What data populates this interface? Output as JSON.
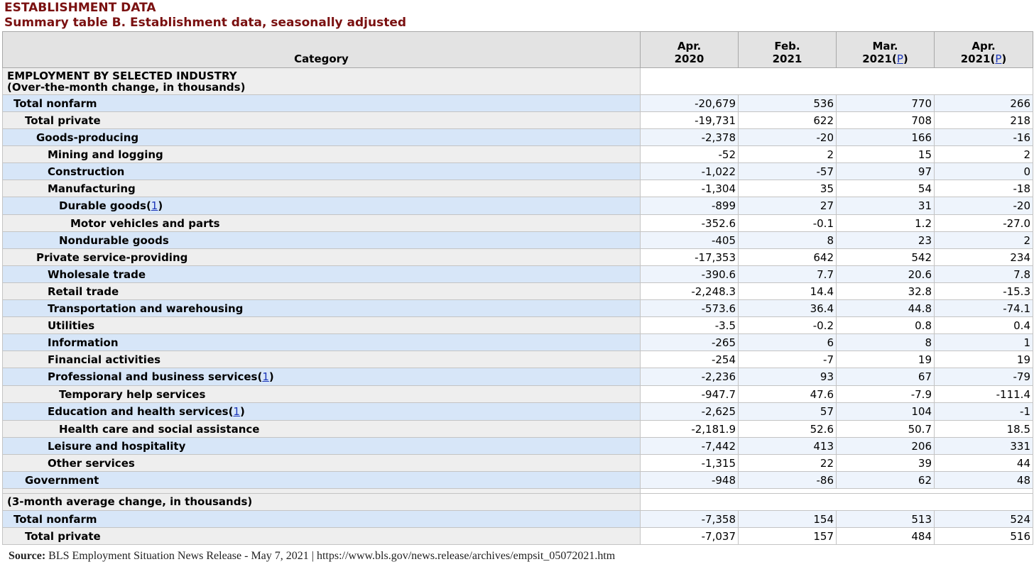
{
  "header": {
    "title": "ESTABLISHMENT DATA",
    "subtitle": "Summary table B. Establishment data, seasonally adjusted"
  },
  "table": {
    "columns": [
      {
        "line1": "Category",
        "line2": "",
        "prelim": ""
      },
      {
        "line1": "Apr.",
        "line2": "2020",
        "prelim": ""
      },
      {
        "line1": "Feb.",
        "line2": "2021",
        "prelim": ""
      },
      {
        "line1": "Mar.",
        "line2": "2021",
        "prelim": "P"
      },
      {
        "line1": "Apr.",
        "line2": "2021",
        "prelim": "P"
      }
    ],
    "section1": {
      "line1": "EMPLOYMENT BY SELECTED INDUSTRY",
      "line2": "(Over-the-month change, in thousands)"
    },
    "rows": [
      {
        "label": "Total nonfarm",
        "fn": "",
        "values": [
          "-20,679",
          "536",
          "770",
          "266"
        ]
      },
      {
        "label": "Total private",
        "fn": "",
        "values": [
          "-19,731",
          "622",
          "708",
          "218"
        ]
      },
      {
        "label": "Goods-producing",
        "fn": "",
        "values": [
          "-2,378",
          "-20",
          "166",
          "-16"
        ]
      },
      {
        "label": "Mining and logging",
        "fn": "",
        "values": [
          "-52",
          "2",
          "15",
          "2"
        ]
      },
      {
        "label": "Construction",
        "fn": "",
        "values": [
          "-1,022",
          "-57",
          "97",
          "0"
        ]
      },
      {
        "label": "Manufacturing",
        "fn": "",
        "values": [
          "-1,304",
          "35",
          "54",
          "-18"
        ]
      },
      {
        "label": "Durable goods",
        "fn": "1",
        "values": [
          "-899",
          "27",
          "31",
          "-20"
        ]
      },
      {
        "label": "Motor vehicles and parts",
        "fn": "",
        "values": [
          "-352.6",
          "-0.1",
          "1.2",
          "-27.0"
        ]
      },
      {
        "label": "Nondurable goods",
        "fn": "",
        "values": [
          "-405",
          "8",
          "23",
          "2"
        ]
      },
      {
        "label": "Private service-providing",
        "fn": "",
        "values": [
          "-17,353",
          "642",
          "542",
          "234"
        ]
      },
      {
        "label": "Wholesale trade",
        "fn": "",
        "values": [
          "-390.6",
          "7.7",
          "20.6",
          "7.8"
        ]
      },
      {
        "label": "Retail trade",
        "fn": "",
        "values": [
          "-2,248.3",
          "14.4",
          "32.8",
          "-15.3"
        ]
      },
      {
        "label": "Transportation and warehousing",
        "fn": "",
        "values": [
          "-573.6",
          "36.4",
          "44.8",
          "-74.1"
        ]
      },
      {
        "label": "Utilities",
        "fn": "",
        "values": [
          "-3.5",
          "-0.2",
          "0.8",
          "0.4"
        ]
      },
      {
        "label": "Information",
        "fn": "",
        "values": [
          "-265",
          "6",
          "8",
          "1"
        ]
      },
      {
        "label": "Financial activities",
        "fn": "",
        "values": [
          "-254",
          "-7",
          "19",
          "19"
        ]
      },
      {
        "label": "Professional and business services",
        "fn": "1",
        "values": [
          "-2,236",
          "93",
          "67",
          "-79"
        ]
      },
      {
        "label": "Temporary help services",
        "fn": "",
        "values": [
          "-947.7",
          "47.6",
          "-7.9",
          "-111.4"
        ]
      },
      {
        "label": "Education and health services",
        "fn": "1",
        "values": [
          "-2,625",
          "57",
          "104",
          "-1"
        ]
      },
      {
        "label": "Health care and social assistance",
        "fn": "",
        "values": [
          "-2,181.9",
          "52.6",
          "50.7",
          "18.5"
        ]
      },
      {
        "label": "Leisure and hospitality",
        "fn": "",
        "values": [
          "-7,442",
          "413",
          "206",
          "331"
        ]
      },
      {
        "label": "Other services",
        "fn": "",
        "values": [
          "-1,315",
          "22",
          "39",
          "44"
        ]
      },
      {
        "label": "Government",
        "fn": "",
        "values": [
          "-948",
          "-86",
          "62",
          "48"
        ]
      }
    ],
    "section2": {
      "line1": "(3-month average change, in thousands)"
    },
    "rows2": [
      {
        "label": "Total nonfarm",
        "values": [
          "-7,358",
          "154",
          "513",
          "524"
        ]
      },
      {
        "label": "Total private",
        "values": [
          "-7,037",
          "157",
          "484",
          "516"
        ]
      }
    ]
  },
  "source": {
    "label": "Source:",
    "text": "BLS Employment Situation News Release - May 7, 2021",
    "separator": "|",
    "url": "https://www.bls.gov/news.release/archives/empsit_05072021.htm"
  }
}
